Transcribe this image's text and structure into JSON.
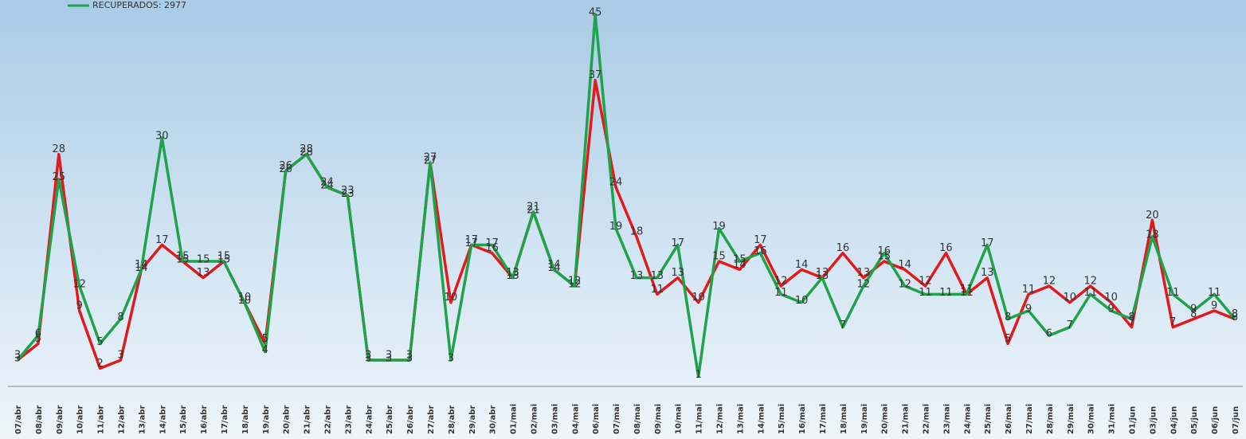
{
  "chart_data": {
    "type": "line",
    "categories": [
      "07/abr",
      "08/abr",
      "09/abr",
      "10/abr",
      "11/abr",
      "12/abr",
      "13/abr",
      "14/abr",
      "15/abr",
      "16/abr",
      "17/abr",
      "18/abr",
      "19/abr",
      "20/abr",
      "21/abr",
      "22/abr",
      "23/abr",
      "24/abr",
      "25/abr",
      "26/abr",
      "27/abr",
      "28/abr",
      "29/abr",
      "30/abr",
      "01/mai",
      "02/mai",
      "03/mai",
      "04/mai",
      "06/mai",
      "07/mai",
      "08/mai",
      "09/mai",
      "10/mai",
      "11/mai",
      "12/mai",
      "13/mai",
      "14/mai",
      "15/mai",
      "16/mai",
      "17/mai",
      "18/mai",
      "19/mai",
      "20/mai",
      "21/mai",
      "22/mai",
      "23/mai",
      "24/mai",
      "25/mai",
      "26/mai",
      "27/mai",
      "28/mai",
      "29/mai",
      "30/mai",
      "31/mai",
      "01/jun",
      "03/jun",
      "04/jun",
      "05/jun",
      "06/jun",
      "07/jun"
    ],
    "series": [
      {
        "color": "#e31a1c",
        "values": [
          3,
          5,
          28,
          9,
          2,
          3,
          14,
          17,
          15,
          13,
          15,
          10,
          5,
          26,
          28,
          24,
          23,
          3,
          3,
          3,
          27,
          10,
          17,
          16,
          13,
          21,
          14,
          12,
          37,
          24,
          18,
          11,
          13,
          10,
          15,
          14,
          17,
          12,
          14,
          13,
          16,
          13,
          15,
          14,
          12,
          16,
          11,
          13,
          5,
          11,
          12,
          10,
          12,
          10,
          7,
          20,
          7,
          8,
          9,
          8
        ]
      },
      {
        "name": "RECUPERADOS: 2977",
        "color": "#1fa34a",
        "values": [
          3,
          6,
          25,
          12,
          5,
          8,
          14,
          30,
          15,
          15,
          15,
          10,
          4,
          26,
          28,
          24,
          23,
          3,
          3,
          3,
          27,
          3,
          17,
          17,
          13,
          21,
          14,
          12,
          45,
          19,
          13,
          13,
          17,
          1,
          19,
          15,
          16,
          11,
          10,
          13,
          7,
          12,
          16,
          12,
          11,
          11,
          11,
          17,
          8,
          9,
          6,
          7,
          11,
          9,
          8,
          18,
          11,
          9,
          11,
          8
        ]
      }
    ],
    "ylim": [
      0,
      45
    ]
  }
}
